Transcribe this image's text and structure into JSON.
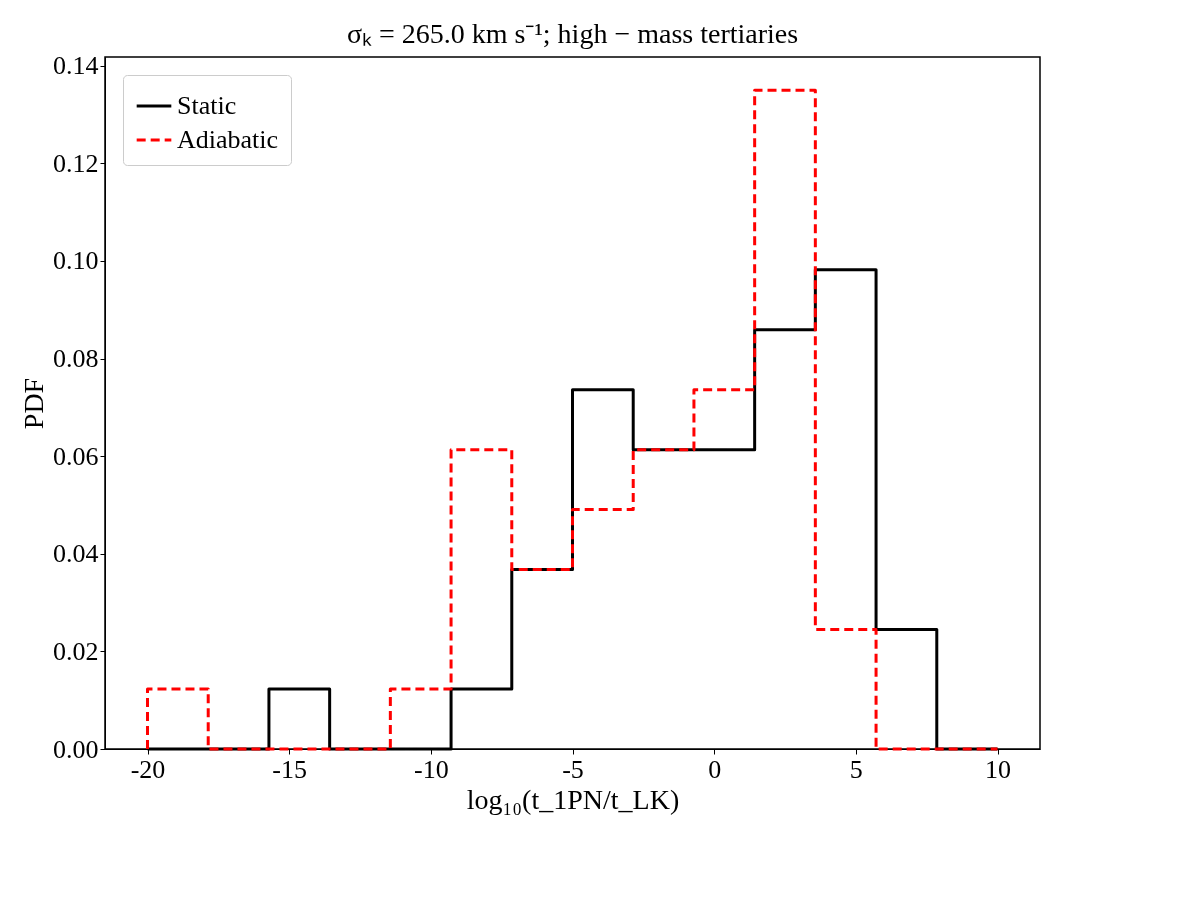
{
  "chart_data": {
    "type": "histogram",
    "title": "σₖ = 265.0 km s⁻¹; high − mass tertiaries",
    "xlabel": "log₁₀(t_1PN/t_LK)",
    "ylabel": "PDF",
    "bins": [
      -20,
      -17.857,
      -15.714,
      -13.571,
      -11.429,
      -9.286,
      -7.143,
      -5,
      -2.857,
      -0.714,
      1.429,
      3.571,
      5.714,
      7.857,
      10
    ],
    "series": [
      {
        "name": "Static",
        "color": "#000000",
        "line_style": "solid",
        "values": [
          0,
          0,
          0.0123,
          0,
          0,
          0.0123,
          0.0368,
          0.0736,
          0.0613,
          0.0613,
          0.0859,
          0.0982,
          0.0245,
          0
        ]
      },
      {
        "name": "Adiabatic",
        "color": "#ff0000",
        "line_style": "dashed",
        "values": [
          0.0123,
          0,
          0,
          0,
          0.0123,
          0.0613,
          0.0368,
          0.0491,
          0.0613,
          0.0736,
          0.135,
          0.0245,
          0,
          0
        ]
      }
    ],
    "xlim": [
      -21.5,
      11.5
    ],
    "xticks": [
      -20,
      -15,
      -10,
      -5,
      0,
      5,
      10
    ],
    "ylim": [
      0,
      0.1418
    ],
    "yticks": [
      {
        "value": 0,
        "label": "0.00"
      },
      0.02,
      0.04,
      0.06,
      0.08,
      {
        "value": 0.1,
        "label": "0.10"
      },
      0.12,
      0.14
    ],
    "legend": "top left"
  }
}
